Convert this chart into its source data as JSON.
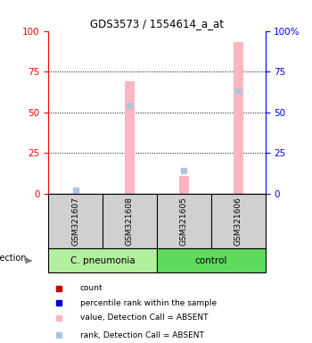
{
  "title": "GDS3573 / 1554614_a_at",
  "samples": [
    "GSM321607",
    "GSM321608",
    "GSM321605",
    "GSM321606"
  ],
  "group_labels": [
    "C. pneumonia",
    "control"
  ],
  "group_colors": [
    "#B2F0A0",
    "#5EDB5E"
  ],
  "yticks": [
    0,
    25,
    50,
    75,
    100
  ],
  "bars": [
    {
      "x": 1,
      "value": 0,
      "rank": 2,
      "absent": true
    },
    {
      "x": 2,
      "value": 69,
      "rank": 54,
      "absent": true
    },
    {
      "x": 3,
      "value": 11,
      "rank": 14,
      "absent": true
    },
    {
      "x": 4,
      "value": 93,
      "rank": 63,
      "absent": true
    }
  ],
  "bar_absent_color": "#FFB6C1",
  "rank_absent_color": "#B0C4DE",
  "infection_label": "infection",
  "legend_items": [
    {
      "color": "#CC0000",
      "label": "count"
    },
    {
      "color": "#0000CC",
      "label": "percentile rank within the sample"
    },
    {
      "color": "#FFB6C1",
      "label": "value, Detection Call = ABSENT"
    },
    {
      "color": "#B0C4DE",
      "label": "rank, Detection Call = ABSENT"
    }
  ],
  "background_color": "#ffffff",
  "sample_box_color": "#d0d0d0",
  "bar_width": 0.18
}
